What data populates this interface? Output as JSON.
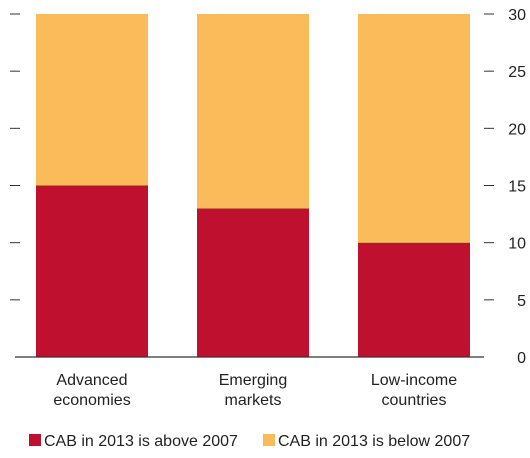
{
  "chart_data": {
    "type": "bar",
    "stacked": true,
    "categories": [
      [
        "Advanced",
        "economies"
      ],
      [
        "Emerging",
        "markets"
      ],
      [
        "Low-income",
        "countries"
      ]
    ],
    "series": [
      {
        "name": "CAB in 2013 is above 2007",
        "values": [
          15,
          13,
          10
        ],
        "color": "#c0102f"
      },
      {
        "name": "CAB in 2013 is below 2007",
        "values": [
          15,
          17,
          20
        ],
        "color": "#fcbb5a"
      }
    ],
    "yaxis": {
      "position": "right",
      "ylim": [
        0,
        30
      ],
      "ticks": [
        0,
        5,
        10,
        15,
        20,
        25,
        30
      ]
    },
    "grid": false,
    "legend": {
      "placement": "bottom"
    }
  }
}
